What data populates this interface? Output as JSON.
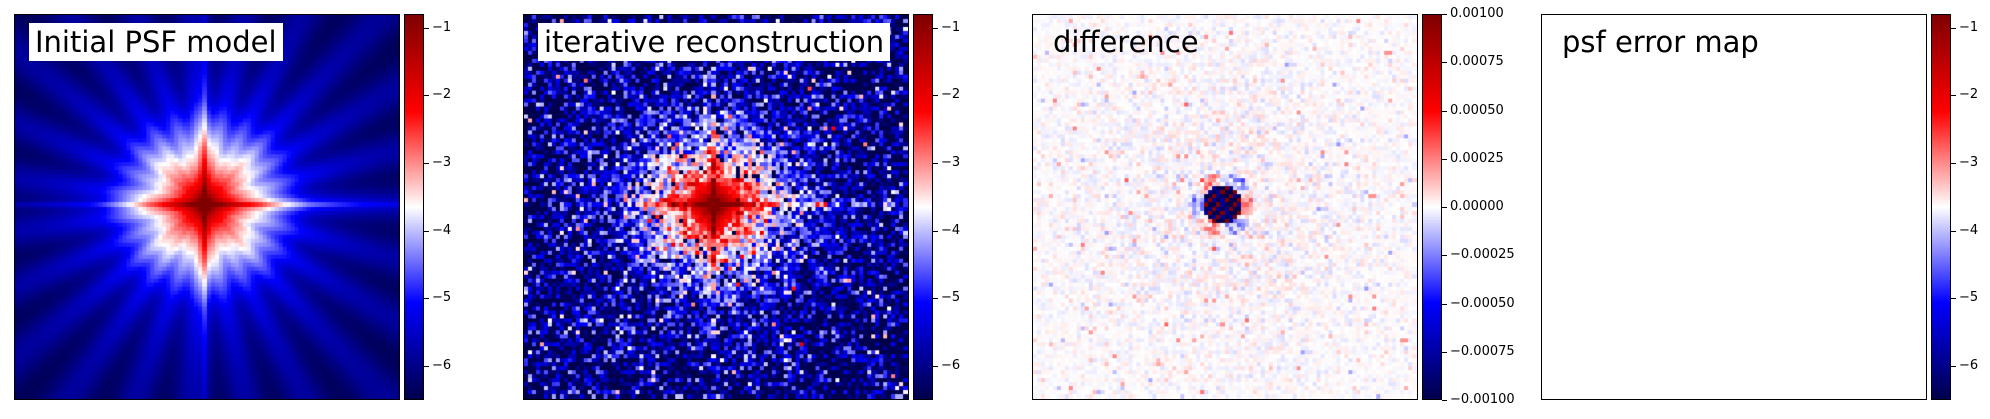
{
  "chart_data": [
    {
      "type": "heatmap",
      "title": "Initial PSF model",
      "colormap": "seismic",
      "colorbar": {
        "range": [
          -6.5,
          -0.8
        ],
        "ticks": [
          -1,
          -2,
          -3,
          -4,
          -5,
          -6
        ],
        "tick_labels": [
          "−1",
          "−2",
          "−3",
          "−4",
          "−5",
          "−6"
        ]
      },
      "content": "smooth log-scale PSF with bright core and diffraction spikes"
    },
    {
      "type": "heatmap",
      "title": "iterative reconstruction",
      "colormap": "seismic",
      "colorbar": {
        "range": [
          -6.5,
          -0.8
        ],
        "ticks": [
          -1,
          -2,
          -3,
          -4,
          -5,
          -6
        ],
        "tick_labels": [
          "−1",
          "−2",
          "−3",
          "−4",
          "−5",
          "−6"
        ]
      },
      "content": "noisy log-scale PSF reconstruction with bright core"
    },
    {
      "type": "heatmap",
      "title": "difference",
      "colormap": "seismic",
      "colorbar": {
        "range": [
          -0.001,
          0.001
        ],
        "ticks": [
          0.001,
          0.00075,
          0.0005,
          0.00025,
          0,
          -0.00025,
          -0.0005,
          -0.00075,
          -0.001
        ],
        "tick_labels": [
          "0.00100",
          "0.00075",
          "0.00050",
          "0.00025",
          "0.00000",
          "−0.00025",
          "−0.00050",
          "−0.00075",
          "−0.00100"
        ]
      },
      "content": "near-zero residuals with small positive/negative structure at center"
    },
    {
      "type": "heatmap",
      "title": "psf error map",
      "colormap": "seismic",
      "colorbar": {
        "range": [
          -6.5,
          -0.8
        ],
        "ticks": [
          -1,
          -2,
          -3,
          -4,
          -5,
          -6
        ],
        "tick_labels": [
          "−1",
          "−2",
          "−3",
          "−4",
          "−5",
          "−6"
        ]
      },
      "content": "empty"
    }
  ]
}
